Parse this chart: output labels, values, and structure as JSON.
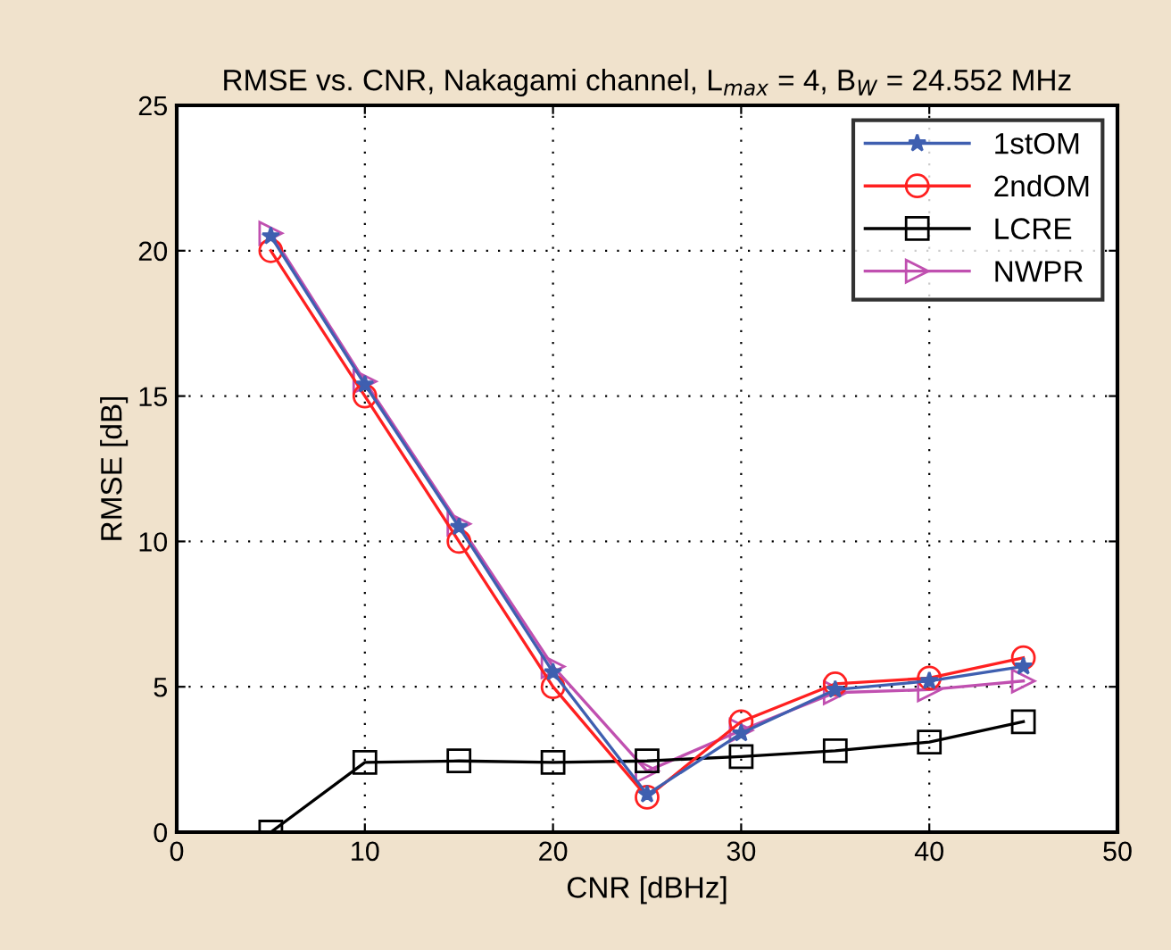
{
  "chart_data": {
    "type": "line",
    "title": "RMSE vs. CNR, Nakagami channel, L$_{max}$ = 4, B$_{W}$ = 24.552 MHz",
    "xlabel": "CNR [dBHz]",
    "ylabel": "RMSE [dB]",
    "x": [
      5,
      10,
      15,
      20,
      25,
      30,
      35,
      40,
      45
    ],
    "series": [
      {
        "name": "1stOM",
        "color": "#3f5fb0",
        "marker": "star",
        "values": [
          20.5,
          15.4,
          10.5,
          5.5,
          1.3,
          3.4,
          4.9,
          5.2,
          5.7
        ]
      },
      {
        "name": "2ndOM",
        "color": "#ff2020",
        "marker": "circle",
        "values": [
          20.0,
          15.0,
          10.0,
          5.0,
          1.2,
          3.8,
          5.1,
          5.3,
          6.0
        ]
      },
      {
        "name": "LCRE",
        "color": "#000000",
        "marker": "square",
        "values": [
          0,
          2.4,
          2.45,
          2.4,
          2.45,
          2.6,
          2.8,
          3.1,
          3.8
        ]
      },
      {
        "name": "NWPR",
        "color": "#c050b0",
        "marker": "triangle",
        "values": [
          20.6,
          15.5,
          10.6,
          5.7,
          2.1,
          3.5,
          4.8,
          4.9,
          5.2
        ]
      }
    ],
    "xlim": [
      0,
      50
    ],
    "xticks": [
      0,
      10,
      20,
      30,
      40,
      50
    ],
    "ylim": [
      0,
      25
    ],
    "yticks": [
      0,
      5,
      10,
      15,
      20,
      25
    ],
    "grid": true,
    "legend": "top right",
    "line_style": "solid"
  }
}
